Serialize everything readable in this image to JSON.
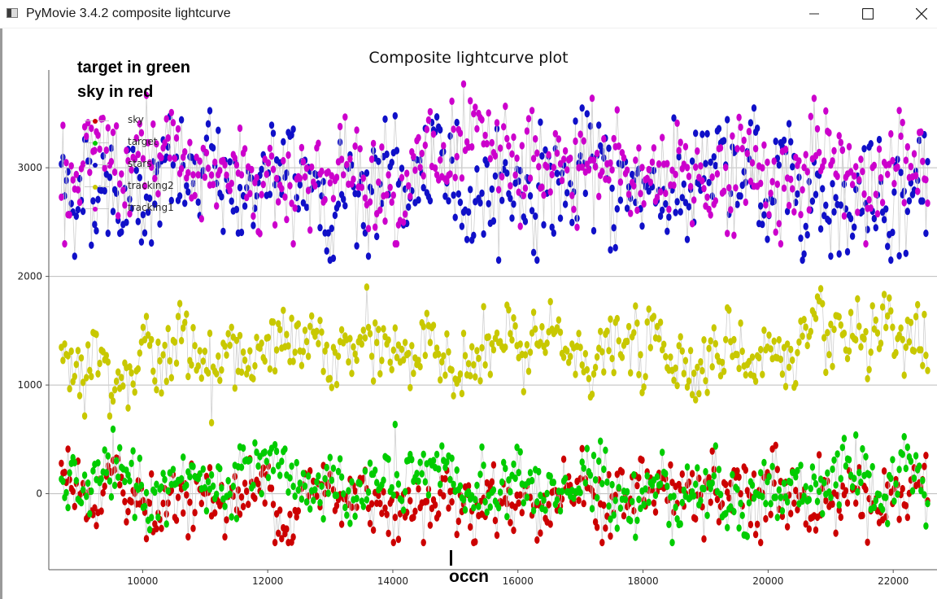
{
  "window": {
    "title": "PyMovie 3.4.2 composite lightcurve",
    "minimize_glyph": "minimize-icon",
    "maximize_glyph": "maximize-icon",
    "close_glyph": "close-icon"
  },
  "annotation": {
    "line1": "target in green",
    "line2": "sky in red",
    "marker": "occn"
  },
  "colors": {
    "sky": "#cc0000",
    "target": "#00cc00",
    "stars": "#1010c8",
    "tracking2": "#c8c800",
    "tracking1": "#cc00cc",
    "connector": "#cfcfcf",
    "grid": "#bdbdbd"
  },
  "chart_data": {
    "type": "scatter",
    "title": "Composite lightcurve plot",
    "xlabel": "",
    "ylabel": "",
    "xlim": [
      8500,
      22700
    ],
    "ylim": [
      -700,
      3900
    ],
    "x_ticks": [
      10000,
      12000,
      14000,
      16000,
      18000,
      20000,
      22000
    ],
    "y_ticks": [
      0,
      1000,
      2000,
      3000
    ],
    "grid": "horizontal",
    "legend_position": "top-left",
    "series": [
      {
        "name": "sky",
        "color": "#cc0000",
        "mean": -20,
        "spread": 180,
        "min": -450,
        "max": 680
      },
      {
        "name": "target",
        "color": "#00cc00",
        "mean": 60,
        "spread": 170,
        "min": -450,
        "max": 680
      },
      {
        "name": "stars",
        "color": "#1010c8",
        "mean": 2850,
        "spread": 280,
        "min": 2150,
        "max": 3550
      },
      {
        "name": "tracking2",
        "color": "#c8c800",
        "mean": 1300,
        "spread": 180,
        "min": 500,
        "max": 1970
      },
      {
        "name": "tracking1",
        "color": "#cc00cc",
        "mean": 2950,
        "spread": 260,
        "min": 2300,
        "max": 3780
      }
    ],
    "x_range": [
      8700,
      22550
    ],
    "annotation_occn_x": 15100
  }
}
